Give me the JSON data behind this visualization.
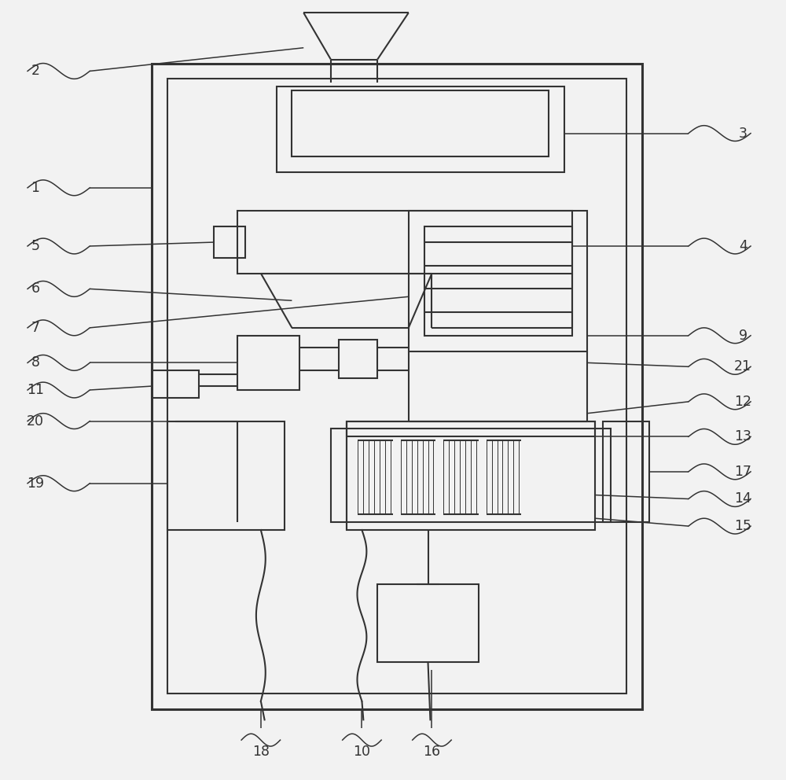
{
  "bg_color": "#f2f2f2",
  "line_color": "#333333",
  "lw": 1.5,
  "lw2": 2.2,
  "lw_thin": 0.9
}
